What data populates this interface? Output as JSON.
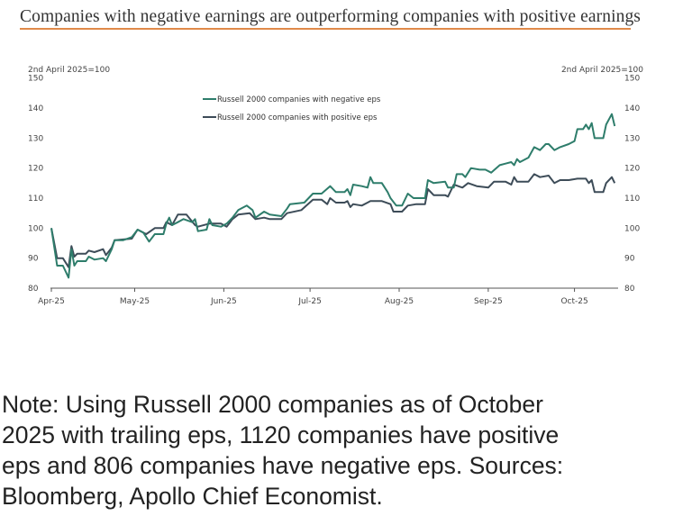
{
  "title": "Companies with negative earnings are outperforming companies with positive earnings",
  "colors": {
    "title_rule": "#e08a4a",
    "negative": "#2e7d6b",
    "positive": "#3d4c58"
  },
  "chart_data": {
    "type": "line",
    "title": "Companies with negative earnings are outperforming companies with positive earnings",
    "ylabel_left": "2nd April 2025=100",
    "ylabel_right": "2nd April 2025=100",
    "ylim": [
      80,
      150
    ],
    "yticks": [
      80,
      90,
      100,
      110,
      120,
      130,
      140,
      150
    ],
    "xlim": [
      "2025-04-02",
      "2025-10-15"
    ],
    "xticks": [
      {
        "date": "2025-04-01",
        "label": "Apr-25"
      },
      {
        "date": "2025-05-01",
        "label": "May-25"
      },
      {
        "date": "2025-06-01",
        "label": "Jun-25"
      },
      {
        "date": "2025-07-01",
        "label": "Jul-25"
      },
      {
        "date": "2025-08-01",
        "label": "Aug-25"
      },
      {
        "date": "2025-09-01",
        "label": "Sep-25"
      },
      {
        "date": "2025-10-01",
        "label": "Oct-25"
      }
    ],
    "grid": false,
    "legend_position": "top-center",
    "series": [
      {
        "name": "Russell 2000 companies with negative eps",
        "color": "#2e7d6b",
        "points": [
          [
            "2025-04-02",
            100
          ],
          [
            "2025-04-04",
            87.5
          ],
          [
            "2025-04-06",
            87.5
          ],
          [
            "2025-04-08",
            83.5
          ],
          [
            "2025-04-09",
            93
          ],
          [
            "2025-04-10",
            87.5
          ],
          [
            "2025-04-11",
            89
          ],
          [
            "2025-04-14",
            89
          ],
          [
            "2025-04-15",
            90.5
          ],
          [
            "2025-04-17",
            89.5
          ],
          [
            "2025-04-20",
            90
          ],
          [
            "2025-04-21",
            89
          ],
          [
            "2025-04-23",
            93
          ],
          [
            "2025-04-24",
            96
          ],
          [
            "2025-04-27",
            96
          ],
          [
            "2025-04-30",
            97
          ],
          [
            "2025-05-02",
            99.5
          ],
          [
            "2025-05-04",
            98.5
          ],
          [
            "2025-05-06",
            95.5
          ],
          [
            "2025-05-08",
            98
          ],
          [
            "2025-05-11",
            98
          ],
          [
            "2025-05-12",
            101.5
          ],
          [
            "2025-05-13",
            103.5
          ],
          [
            "2025-05-14",
            101
          ],
          [
            "2025-05-16",
            102
          ],
          [
            "2025-05-18",
            103
          ],
          [
            "2025-05-21",
            102
          ],
          [
            "2025-05-22",
            103
          ],
          [
            "2025-05-23",
            99
          ],
          [
            "2025-05-26",
            99.5
          ],
          [
            "2025-05-27",
            103
          ],
          [
            "2025-05-28",
            101
          ],
          [
            "2025-05-31",
            100.5
          ],
          [
            "2025-06-02",
            101.5
          ],
          [
            "2025-06-04",
            103.5
          ],
          [
            "2025-06-06",
            106
          ],
          [
            "2025-06-09",
            107.5
          ],
          [
            "2025-06-11",
            106
          ],
          [
            "2025-06-12",
            103.5
          ],
          [
            "2025-06-15",
            105.5
          ],
          [
            "2025-06-17",
            104.5
          ],
          [
            "2025-06-21",
            104
          ],
          [
            "2025-06-23",
            106.5
          ],
          [
            "2025-06-24",
            108
          ],
          [
            "2025-06-29",
            108.5
          ],
          [
            "2025-07-02",
            111.5
          ],
          [
            "2025-07-05",
            111.5
          ],
          [
            "2025-07-08",
            114
          ],
          [
            "2025-07-10",
            112
          ],
          [
            "2025-07-13",
            112
          ],
          [
            "2025-07-14",
            113
          ],
          [
            "2025-07-15",
            111
          ],
          [
            "2025-07-16",
            114.5
          ],
          [
            "2025-07-19",
            114
          ],
          [
            "2025-07-21",
            113.5
          ],
          [
            "2025-07-22",
            117
          ],
          [
            "2025-07-23",
            115
          ],
          [
            "2025-07-26",
            115
          ],
          [
            "2025-07-28",
            112
          ],
          [
            "2025-07-29",
            110
          ],
          [
            "2025-07-31",
            107.5
          ],
          [
            "2025-08-02",
            107.5
          ],
          [
            "2025-08-04",
            111.5
          ],
          [
            "2025-08-06",
            110
          ],
          [
            "2025-08-10",
            110
          ],
          [
            "2025-08-11",
            116
          ],
          [
            "2025-08-13",
            115
          ],
          [
            "2025-08-17",
            115.5
          ],
          [
            "2025-08-18",
            113.5
          ],
          [
            "2025-08-20",
            113.5
          ],
          [
            "2025-08-21",
            118
          ],
          [
            "2025-08-23",
            118
          ],
          [
            "2025-08-24",
            117
          ],
          [
            "2025-08-26",
            120
          ],
          [
            "2025-08-29",
            119.5
          ],
          [
            "2025-08-31",
            119.5
          ],
          [
            "2025-09-02",
            118.5
          ],
          [
            "2025-09-05",
            121
          ],
          [
            "2025-09-07",
            121.5
          ],
          [
            "2025-09-09",
            122
          ],
          [
            "2025-09-10",
            121
          ],
          [
            "2025-09-11",
            123
          ],
          [
            "2025-09-12",
            122
          ],
          [
            "2025-09-15",
            123.5
          ],
          [
            "2025-09-17",
            127
          ],
          [
            "2025-09-19",
            126
          ],
          [
            "2025-09-21",
            128
          ],
          [
            "2025-09-22",
            128
          ],
          [
            "2025-09-24",
            126
          ],
          [
            "2025-09-26",
            127
          ],
          [
            "2025-09-29",
            128
          ],
          [
            "2025-10-01",
            129
          ],
          [
            "2025-10-02",
            133
          ],
          [
            "2025-10-04",
            133
          ],
          [
            "2025-10-05",
            134.5
          ],
          [
            "2025-10-06",
            133
          ],
          [
            "2025-10-07",
            135
          ],
          [
            "2025-10-08",
            130
          ],
          [
            "2025-10-11",
            130
          ],
          [
            "2025-10-12",
            134.5
          ],
          [
            "2025-10-14",
            138
          ],
          [
            "2025-10-15",
            134
          ]
        ]
      },
      {
        "name": "Russell 2000 companies with positive eps",
        "color": "#3d4c58",
        "points": [
          [
            "2025-04-02",
            100
          ],
          [
            "2025-04-04",
            90
          ],
          [
            "2025-04-06",
            90
          ],
          [
            "2025-04-08",
            87
          ],
          [
            "2025-04-09",
            94
          ],
          [
            "2025-04-10",
            90.5
          ],
          [
            "2025-04-11",
            91.5
          ],
          [
            "2025-04-14",
            91.5
          ],
          [
            "2025-04-15",
            92.5
          ],
          [
            "2025-04-17",
            92
          ],
          [
            "2025-04-20",
            93
          ],
          [
            "2025-04-21",
            91
          ],
          [
            "2025-04-23",
            93.5
          ],
          [
            "2025-04-24",
            96
          ],
          [
            "2025-04-30",
            96.5
          ],
          [
            "2025-05-02",
            99.5
          ],
          [
            "2025-05-05",
            98
          ],
          [
            "2025-05-08",
            100
          ],
          [
            "2025-05-11",
            100
          ],
          [
            "2025-05-12",
            102
          ],
          [
            "2025-05-14",
            101
          ],
          [
            "2025-05-16",
            104.5
          ],
          [
            "2025-05-19",
            104.5
          ],
          [
            "2025-05-22",
            101
          ],
          [
            "2025-05-23",
            100.5
          ],
          [
            "2025-05-27",
            101.5
          ],
          [
            "2025-05-31",
            101.5
          ],
          [
            "2025-06-02",
            100.5
          ],
          [
            "2025-06-04",
            103
          ],
          [
            "2025-06-06",
            104.5
          ],
          [
            "2025-06-10",
            105
          ],
          [
            "2025-06-12",
            103
          ],
          [
            "2025-06-15",
            103.5
          ],
          [
            "2025-06-17",
            103
          ],
          [
            "2025-06-21",
            103
          ],
          [
            "2025-06-23",
            105
          ],
          [
            "2025-06-28",
            106
          ],
          [
            "2025-07-02",
            109.5
          ],
          [
            "2025-07-05",
            109.5
          ],
          [
            "2025-07-07",
            108
          ],
          [
            "2025-07-08",
            110
          ],
          [
            "2025-07-10",
            108.5
          ],
          [
            "2025-07-13",
            108.5
          ],
          [
            "2025-07-14",
            109
          ],
          [
            "2025-07-15",
            107
          ],
          [
            "2025-07-16",
            108
          ],
          [
            "2025-07-19",
            107.5
          ],
          [
            "2025-07-21",
            108.5
          ],
          [
            "2025-07-22",
            109
          ],
          [
            "2025-07-26",
            109
          ],
          [
            "2025-07-29",
            108
          ],
          [
            "2025-07-30",
            105.5
          ],
          [
            "2025-08-02",
            105.5
          ],
          [
            "2025-08-04",
            107.5
          ],
          [
            "2025-08-07",
            108
          ],
          [
            "2025-08-10",
            108
          ],
          [
            "2025-08-11",
            113
          ],
          [
            "2025-08-13",
            111
          ],
          [
            "2025-08-17",
            111
          ],
          [
            "2025-08-18",
            110.5
          ],
          [
            "2025-08-20",
            114.5
          ],
          [
            "2025-08-23",
            113.5
          ],
          [
            "2025-08-25",
            115
          ],
          [
            "2025-08-28",
            114
          ],
          [
            "2025-09-01",
            113.5
          ],
          [
            "2025-09-03",
            115.5
          ],
          [
            "2025-09-07",
            115.5
          ],
          [
            "2025-09-09",
            114.5
          ],
          [
            "2025-09-10",
            117
          ],
          [
            "2025-09-11",
            115.5
          ],
          [
            "2025-09-15",
            115.5
          ],
          [
            "2025-09-17",
            118
          ],
          [
            "2025-09-19",
            117
          ],
          [
            "2025-09-22",
            117.5
          ],
          [
            "2025-09-24",
            115
          ],
          [
            "2025-09-26",
            116
          ],
          [
            "2025-09-29",
            116
          ],
          [
            "2025-10-02",
            116.5
          ],
          [
            "2025-10-05",
            116.5
          ],
          [
            "2025-10-06",
            115
          ],
          [
            "2025-10-07",
            116
          ],
          [
            "2025-10-08",
            112
          ],
          [
            "2025-10-11",
            112
          ],
          [
            "2025-10-12",
            115
          ],
          [
            "2025-10-14",
            117
          ],
          [
            "2025-10-15",
            115
          ]
        ]
      }
    ]
  },
  "note": {
    "lines": [
      "Note: Using Russell 2000 companies as of October",
      "2025 with trailing eps, 1120 companies have positive",
      "eps and 806 companies have negative eps. Sources:",
      "Bloomberg, Apollo Chief Economist."
    ]
  }
}
